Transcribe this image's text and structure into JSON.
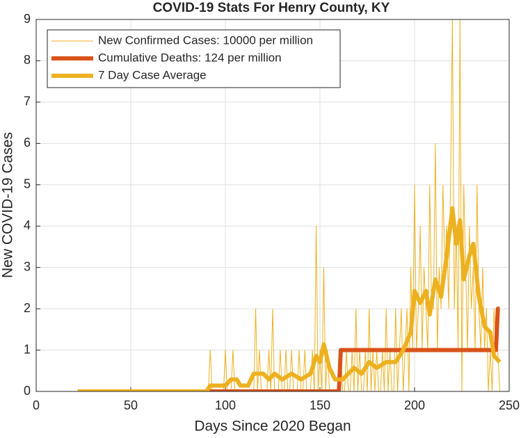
{
  "chart_data": {
    "type": "line",
    "title": "COVID-19 Stats For Henry County, KY",
    "x_label": "Days Since 2020 Began",
    "y_label": "New COVID-19 Cases",
    "xlim": [
      0,
      250
    ],
    "xticks": [
      0,
      50,
      100,
      150,
      200,
      250
    ],
    "ylim": [
      0,
      9
    ],
    "yticks": [
      0,
      1,
      2,
      3,
      4,
      5,
      6,
      7,
      8,
      9
    ],
    "grid": true,
    "legend": "top-left",
    "series": [
      {
        "name": "New Confirmed Cases: 10000 per million",
        "color": "#EDB120",
        "line_width": 1,
        "x": [
          22,
          90,
          91,
          92,
          93,
          94,
          95,
          96,
          97,
          98,
          99,
          100,
          101,
          102,
          103,
          104,
          105,
          106,
          107,
          108,
          109,
          110,
          111,
          112,
          113,
          114,
          115,
          116,
          117,
          118,
          119,
          120,
          121,
          122,
          123,
          124,
          125,
          126,
          127,
          128,
          129,
          130,
          131,
          132,
          133,
          134,
          135,
          136,
          137,
          138,
          139,
          140,
          141,
          142,
          143,
          144,
          145,
          146,
          147,
          148,
          149,
          150,
          151,
          152,
          153,
          154,
          155,
          156,
          157,
          158,
          159,
          160,
          161,
          162,
          163,
          164,
          165,
          166,
          167,
          168,
          169,
          170,
          171,
          172,
          173,
          174,
          175,
          176,
          177,
          178,
          179,
          180,
          181,
          182,
          183,
          184,
          185,
          186,
          187,
          188,
          189,
          190,
          191,
          192,
          193,
          194,
          195,
          196,
          197,
          198,
          199,
          200,
          201,
          202,
          203,
          204,
          205,
          206,
          207,
          208,
          209,
          210,
          211,
          212,
          213,
          214,
          215,
          216,
          217,
          218,
          219,
          220,
          221,
          222,
          223,
          224,
          225,
          226,
          227,
          228,
          229,
          230,
          231,
          232,
          233,
          234,
          235,
          236,
          237,
          238,
          239,
          240,
          241,
          242,
          243,
          244,
          245
        ],
        "values": [
          0,
          0,
          0,
          1,
          0,
          0,
          0,
          0,
          0,
          0,
          0,
          1,
          0,
          0,
          0,
          1,
          0,
          0,
          0,
          0,
          0,
          0,
          0,
          0,
          0,
          0,
          0,
          2,
          0,
          1,
          0,
          0,
          0,
          0,
          1,
          0,
          2,
          0,
          0,
          0,
          1,
          0,
          0,
          1,
          0,
          0,
          1,
          0,
          0,
          0,
          1,
          0,
          0,
          1,
          0,
          0,
          0,
          1,
          0,
          4,
          0,
          1,
          0,
          3,
          0,
          1,
          0,
          0,
          0,
          0,
          0,
          0,
          1,
          0,
          0,
          1,
          0,
          0,
          1,
          0,
          2,
          0,
          1,
          0,
          0,
          1,
          0,
          2,
          0,
          1,
          0,
          1,
          0,
          0,
          1,
          0,
          2,
          0,
          1,
          0,
          0,
          2,
          0,
          1,
          2,
          0,
          1,
          2,
          0,
          3,
          1,
          5,
          1,
          2,
          4,
          1,
          3,
          2,
          1,
          5,
          2,
          2,
          6,
          1,
          3,
          2,
          5,
          3,
          4,
          2,
          5,
          9,
          2,
          4,
          1,
          9,
          0,
          5,
          3,
          1,
          4,
          2,
          3,
          1,
          5,
          2,
          1,
          3,
          1,
          2,
          0,
          1,
          0,
          2,
          1,
          1,
          0
        ]
      },
      {
        "name": "Cumulative Deaths: 124 per million",
        "color": "#D95319",
        "line_width": 6,
        "x": [
          22,
          160,
          161,
          243,
          244,
          245
        ],
        "values": [
          0,
          0,
          1,
          1,
          2,
          2
        ]
      },
      {
        "name": "7 Day Case Average",
        "color": "#EDB120",
        "line_width": 6,
        "x": [
          22,
          90,
          92,
          98,
          100,
          103,
          106,
          108,
          112,
          115,
          120,
          123,
          126,
          130,
          135,
          140,
          145,
          148,
          150,
          152,
          155,
          158,
          162,
          165,
          168,
          172,
          176,
          180,
          185,
          190,
          194,
          198,
          200,
          203,
          206,
          208,
          211,
          214,
          217,
          220,
          222,
          224,
          226,
          229,
          231,
          234,
          237,
          240,
          242,
          245
        ],
        "values": [
          0,
          0,
          0.14,
          0.14,
          0.14,
          0.29,
          0.29,
          0.14,
          0.14,
          0.43,
          0.43,
          0.29,
          0.43,
          0.29,
          0.43,
          0.29,
          0.43,
          0.86,
          0.71,
          1.14,
          0.57,
          0.29,
          0.29,
          0.43,
          0.57,
          0.43,
          0.71,
          0.57,
          0.71,
          0.71,
          1.0,
          1.43,
          2.43,
          2.14,
          2.43,
          1.86,
          2.71,
          2.29,
          3.29,
          4.43,
          3.57,
          4.14,
          2.71,
          3.29,
          3.57,
          2.29,
          1.57,
          1.43,
          0.86,
          0.71
        ]
      }
    ]
  }
}
